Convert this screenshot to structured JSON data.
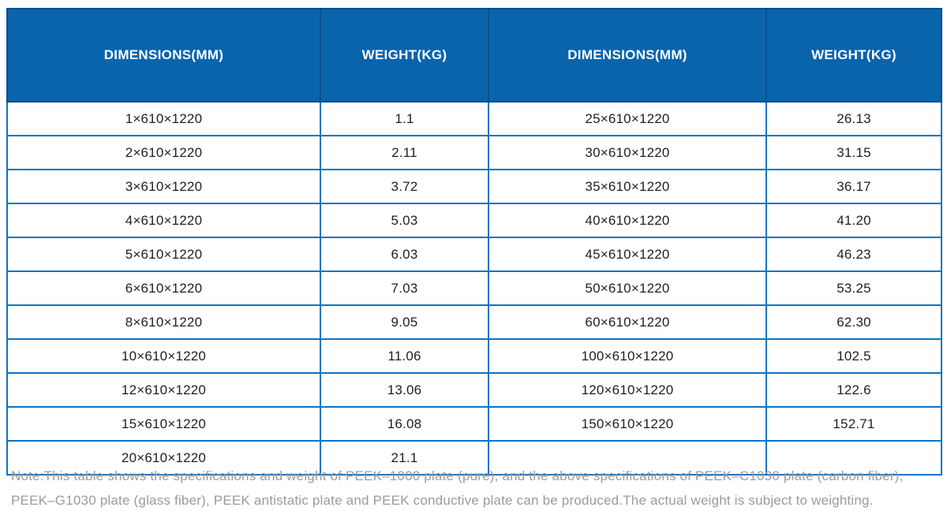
{
  "table": {
    "headers": [
      "DIMENSIONS(MM)",
      "WEIGHT(KG)",
      "DIMENSIONS(MM)",
      "WEIGHT(KG)"
    ],
    "rows": [
      [
        "1×610×1220",
        "1.1",
        "25×610×1220",
        "26.13"
      ],
      [
        "2×610×1220",
        "2.11",
        "30×610×1220",
        "31.15"
      ],
      [
        "3×610×1220",
        "3.72",
        "35×610×1220",
        "36.17"
      ],
      [
        "4×610×1220",
        "5.03",
        "40×610×1220",
        "41.20"
      ],
      [
        "5×610×1220",
        "6.03",
        "45×610×1220",
        "46.23"
      ],
      [
        "6×610×1220",
        "7.03",
        "50×610×1220",
        "53.25"
      ],
      [
        "8×610×1220",
        "9.05",
        "60×610×1220",
        "62.30"
      ],
      [
        "10×610×1220",
        "11.06",
        "100×610×1220",
        "102.5"
      ],
      [
        "12×610×1220",
        "13.06",
        "120×610×1220",
        "122.6"
      ],
      [
        "15×610×1220",
        "16.08",
        "150×610×1220",
        "152.71"
      ],
      [
        "20×610×1220",
        "21.1",
        "",
        ""
      ]
    ]
  },
  "note": {
    "line1": "Note:This table shows the specifications and weight of PEEK–1000 plate (pure), and the above specifications of PEEK–C1030 plate (carbon fiber),",
    "line2": "PEEK–G1030 plate (glass fiber), PEEK antistatic plate and PEEK conductive plate can be produced.The actual weight is subject to weighting."
  },
  "colors": {
    "header_background": "#0a64ac",
    "header_divider": "#084f8e",
    "body_border": "#0c74c4",
    "body_text": "#212121",
    "note_text": "#9b9b9b"
  }
}
